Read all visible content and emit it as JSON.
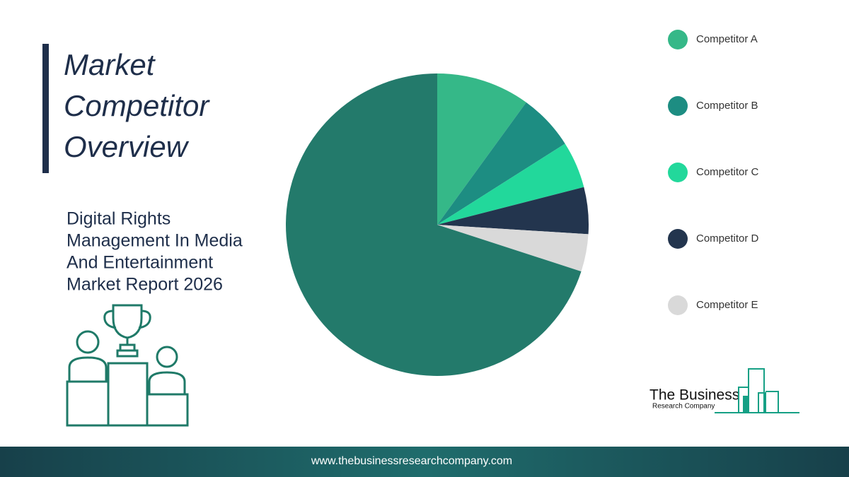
{
  "header": {
    "title_lines": [
      "Market",
      "Competitor",
      "Overview"
    ],
    "subtitle_lines": [
      "Digital Rights",
      "Management In Media",
      "And Entertainment",
      "Market Report 2026"
    ]
  },
  "chart_data": {
    "type": "pie",
    "categories": [
      "Competitor A",
      "Competitor B",
      "Competitor C",
      "Competitor D",
      "Competitor E",
      null
    ],
    "values": [
      10,
      6,
      5,
      5,
      4,
      70
    ],
    "colors": [
      "#35b888",
      "#1d8d82",
      "#22d89b",
      "#23354e",
      "#d9d9d9",
      "#237a6b"
    ]
  },
  "logo": {
    "line1": "The Business",
    "line2": "Research Company"
  },
  "footer": {
    "url": "www.thebusinessresearchcompany.com"
  }
}
